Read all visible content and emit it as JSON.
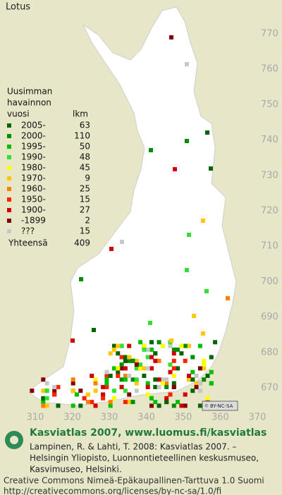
{
  "title": "Lotus",
  "legend": {
    "heading": [
      "Uusimman",
      "havainnon",
      "vuosi"
    ],
    "count_header": "lkm",
    "rows": [
      {
        "label": "2005-",
        "count": 63,
        "color": "#006400"
      },
      {
        "label": "2000-",
        "count": 110,
        "color": "#008c00"
      },
      {
        "label": "1995-",
        "count": 50,
        "color": "#00c000"
      },
      {
        "label": "1990-",
        "count": 48,
        "color": "#33e033"
      },
      {
        "label": "1980-",
        "count": 45,
        "color": "#ffff00"
      },
      {
        "label": "1970-",
        "count": 9,
        "color": "#ffc800"
      },
      {
        "label": "1960-",
        "count": 25,
        "color": "#ff8000"
      },
      {
        "label": "1950-",
        "count": 15,
        "color": "#ff2000"
      },
      {
        "label": "1900-",
        "count": 27,
        "color": "#d00000"
      },
      {
        "label": "-1899",
        "count": 2,
        "color": "#800000"
      },
      {
        "label": "???",
        "count": 15,
        "color": "#c8c8c8"
      }
    ],
    "total_label": "Yhteensä",
    "total": 409
  },
  "map": {
    "northing_ticks": [
      770,
      760,
      750,
      740,
      730,
      720,
      710,
      700,
      690,
      680,
      670
    ],
    "easting_ticks": [
      310,
      320,
      330,
      340,
      350,
      360,
      370
    ]
  },
  "badge": "BY-NC-SA",
  "footer": {
    "title": "Kasviatlas 2007, www.luomus.fi/kasviatlas",
    "citation": [
      "Lampinen, R. & Lahti, T. 2008: Kasviatlas 2007. –",
      "Helsingin Yliopisto, Luonnontieteellinen keskusmuseo,",
      "Kasvimuseo, Helsinki."
    ],
    "license": [
      "Creative Commons Nimeä-Epäkaupallinen-Tarttuva 1.0 Suomi",
      "http://creativecommons.org/licenses/by-nc-sa/1.0/fi"
    ]
  }
}
